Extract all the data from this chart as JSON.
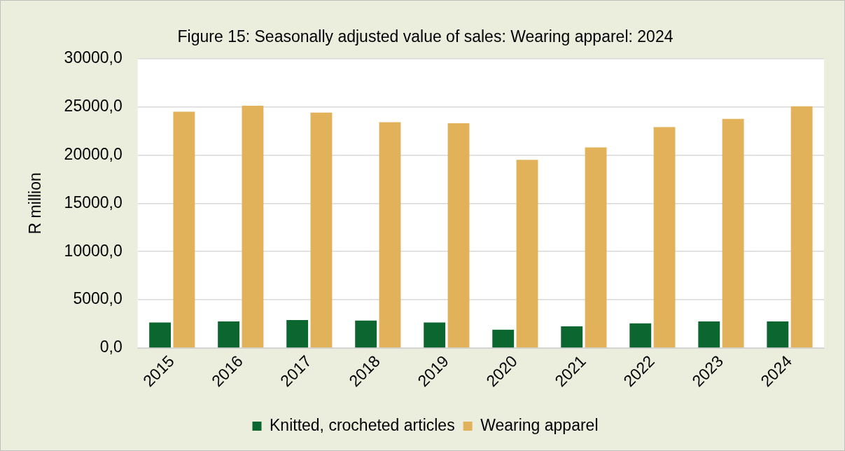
{
  "chart_data": {
    "type": "bar",
    "title": "Figure 15: Seasonally adjusted value of sales: Wearing apparel: 2024",
    "ylabel": "R million",
    "categories": [
      "2015",
      "2016",
      "2017",
      "2018",
      "2019",
      "2020",
      "2021",
      "2022",
      "2023",
      "2024"
    ],
    "series": [
      {
        "name": "Knitted, crocheted articles",
        "color": "#0b6630",
        "values": [
          2650,
          2750,
          2900,
          2850,
          2650,
          1900,
          2250,
          2550,
          2750,
          2750
        ]
      },
      {
        "name": "Wearing apparel",
        "color": "#e2b25a",
        "values": [
          24500,
          25100,
          24400,
          23400,
          23300,
          19500,
          20800,
          22900,
          23750,
          25050
        ]
      }
    ],
    "ylim": [
      0,
      30000
    ],
    "yticks": [
      {
        "value": 0,
        "label": "0,0"
      },
      {
        "value": 5000,
        "label": "5000,0"
      },
      {
        "value": 10000,
        "label": "10000,0"
      },
      {
        "value": 15000,
        "label": "15000,0"
      },
      {
        "value": 20000,
        "label": "20000,0"
      },
      {
        "value": 25000,
        "label": "25000,0"
      },
      {
        "value": 30000,
        "label": "30000,0"
      }
    ],
    "grid": "y",
    "legend": "bottom"
  }
}
